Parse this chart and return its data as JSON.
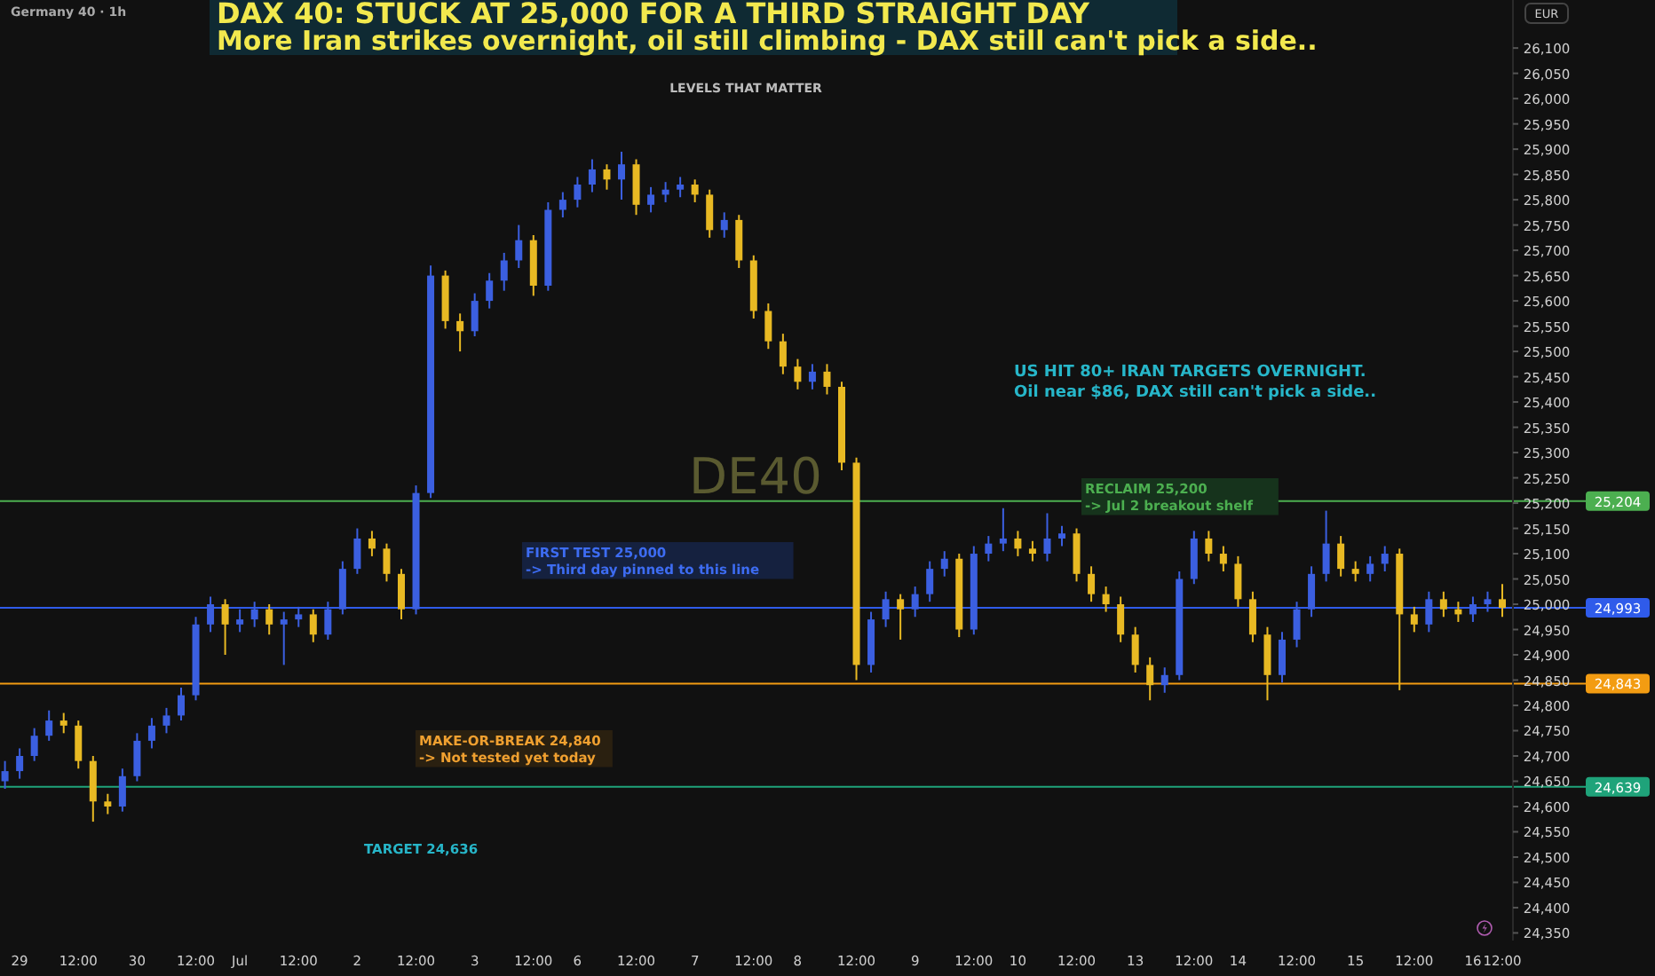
{
  "chart_data": {
    "type": "candlestick",
    "title": "DAX 40: STUCK AT 25,000 FOR A THIRD STRAIGHT DAY",
    "subtitle": "More Iran strikes overnight, oil still climbing - DAX still can't pick a side..",
    "ylabel": "EUR",
    "annotations": [
      "Germany 40 · 1h",
      "LEVELS THAT MATTER",
      "DE40",
      "US HIT 80+ IRAN TARGETS OVERNIGHT.\nOil near $86, DAX still can't pick a side..",
      "RECLAIM 25,200\n-> Jul 2 breakout shelf",
      "FIRST TEST 25,000\n-> Third day pinned to this line",
      "MAKE-OR-BREAK 24,840\n-> Not tested yet today",
      "TARGET 24,636"
    ],
    "categories": [
      null,
      "29",
      null,
      null,
      null,
      "12:00",
      null,
      null,
      null,
      "30",
      null,
      null,
      null,
      "12:00",
      null,
      null,
      "Jul",
      null,
      null,
      null,
      "12:00",
      null,
      null,
      null,
      "2",
      null,
      null,
      null,
      "12:00",
      null,
      null,
      null,
      "3",
      null,
      null,
      null,
      "12:00",
      null,
      null,
      "6",
      null,
      null,
      null,
      "12:00",
      null,
      null,
      null,
      "7",
      null,
      null,
      null,
      "12:00",
      null,
      null,
      "8",
      null,
      null,
      null,
      "12:00",
      null,
      null,
      null,
      "9",
      null,
      null,
      null,
      "12:00",
      null,
      null,
      "10",
      null,
      null,
      null,
      "12:00",
      null,
      null,
      null,
      "13",
      null,
      null,
      null,
      "12:00",
      null,
      null,
      "14",
      null,
      null,
      null,
      "12:00",
      null,
      null,
      null,
      "15",
      null,
      null,
      null,
      "12:00",
      null,
      null,
      null,
      "16",
      null,
      "12:00"
    ],
    "ohlc": [
      [
        24650,
        24690,
        24635,
        24670
      ],
      [
        24670,
        24715,
        24655,
        24700
      ],
      [
        24700,
        24755,
        24690,
        24740
      ],
      [
        24740,
        24790,
        24730,
        24770
      ],
      [
        24770,
        24785,
        24745,
        24760
      ],
      [
        24760,
        24770,
        24675,
        24690
      ],
      [
        24690,
        24700,
        24570,
        24610
      ],
      [
        24610,
        24625,
        24585,
        24600
      ],
      [
        24600,
        24675,
        24590,
        24660
      ],
      [
        24660,
        24745,
        24650,
        24730
      ],
      [
        24730,
        24775,
        24715,
        24760
      ],
      [
        24760,
        24795,
        24745,
        24780
      ],
      [
        24780,
        24835,
        24770,
        24820
      ],
      [
        24820,
        24975,
        24810,
        24960
      ],
      [
        24960,
        25015,
        24945,
        25000
      ],
      [
        25000,
        25010,
        24900,
        24960
      ],
      [
        24960,
        24990,
        24945,
        24970
      ],
      [
        24970,
        25005,
        24955,
        24990
      ],
      [
        24990,
        25000,
        24940,
        24960
      ],
      [
        24960,
        24985,
        24880,
        24970
      ],
      [
        24970,
        24995,
        24955,
        24980
      ],
      [
        24980,
        24990,
        24925,
        24940
      ],
      [
        24940,
        25005,
        24930,
        24990
      ],
      [
        24990,
        25085,
        24980,
        25070
      ],
      [
        25070,
        25150,
        25060,
        25130
      ],
      [
        25130,
        25145,
        25095,
        25110
      ],
      [
        25110,
        25120,
        25045,
        25060
      ],
      [
        25060,
        25070,
        24970,
        24990
      ],
      [
        24990,
        25235,
        24980,
        25220
      ],
      [
        25220,
        25670,
        25210,
        25650
      ],
      [
        25650,
        25660,
        25545,
        25560
      ],
      [
        25560,
        25575,
        25500,
        25540
      ],
      [
        25540,
        25615,
        25530,
        25600
      ],
      [
        25600,
        25655,
        25585,
        25640
      ],
      [
        25640,
        25695,
        25620,
        25680
      ],
      [
        25680,
        25750,
        25665,
        25720
      ],
      [
        25720,
        25730,
        25610,
        25630
      ],
      [
        25630,
        25795,
        25620,
        25780
      ],
      [
        25780,
        25815,
        25765,
        25800
      ],
      [
        25800,
        25845,
        25785,
        25830
      ],
      [
        25830,
        25880,
        25815,
        25860
      ],
      [
        25860,
        25870,
        25820,
        25840
      ],
      [
        25840,
        25895,
        25800,
        25870
      ],
      [
        25870,
        25880,
        25770,
        25790
      ],
      [
        25790,
        25825,
        25775,
        25810
      ],
      [
        25810,
        25835,
        25795,
        25820
      ],
      [
        25820,
        25845,
        25805,
        25830
      ],
      [
        25830,
        25840,
        25795,
        25810
      ],
      [
        25810,
        25820,
        25725,
        25740
      ],
      [
        25740,
        25775,
        25725,
        25760
      ],
      [
        25760,
        25770,
        25665,
        25680
      ],
      [
        25680,
        25690,
        25565,
        25580
      ],
      [
        25580,
        25595,
        25505,
        25520
      ],
      [
        25520,
        25535,
        25455,
        25470
      ],
      [
        25470,
        25485,
        25425,
        25440
      ],
      [
        25440,
        25475,
        25425,
        25460
      ],
      [
        25460,
        25475,
        25415,
        25430
      ],
      [
        25430,
        25440,
        25265,
        25280
      ],
      [
        25280,
        25290,
        24850,
        24880
      ],
      [
        24880,
        24985,
        24865,
        24970
      ],
      [
        24970,
        25025,
        24955,
        25010
      ],
      [
        25010,
        25020,
        24930,
        24990
      ],
      [
        24990,
        25035,
        24975,
        25020
      ],
      [
        25020,
        25085,
        25005,
        25070
      ],
      [
        25070,
        25105,
        25055,
        25090
      ],
      [
        25090,
        25100,
        24935,
        24950
      ],
      [
        24950,
        25115,
        24940,
        25100
      ],
      [
        25100,
        25135,
        25085,
        25120
      ],
      [
        25120,
        25190,
        25105,
        25130
      ],
      [
        25130,
        25145,
        25095,
        25110
      ],
      [
        25110,
        25125,
        25085,
        25100
      ],
      [
        25100,
        25180,
        25085,
        25130
      ],
      [
        25130,
        25155,
        25115,
        25140
      ],
      [
        25140,
        25150,
        25045,
        25060
      ],
      [
        25060,
        25075,
        25005,
        25020
      ],
      [
        25020,
        25035,
        24985,
        25000
      ],
      [
        25000,
        25015,
        24925,
        24940
      ],
      [
        24940,
        24955,
        24865,
        24880
      ],
      [
        24880,
        24895,
        24810,
        24840
      ],
      [
        24840,
        24875,
        24825,
        24860
      ],
      [
        24860,
        25065,
        24850,
        25050
      ],
      [
        25050,
        25145,
        25040,
        25130
      ],
      [
        25130,
        25145,
        25085,
        25100
      ],
      [
        25100,
        25115,
        25065,
        25080
      ],
      [
        25080,
        25095,
        24995,
        25010
      ],
      [
        25010,
        25025,
        24925,
        24940
      ],
      [
        24940,
        24955,
        24810,
        24860
      ],
      [
        24860,
        24945,
        24845,
        24930
      ],
      [
        24930,
        25005,
        24915,
        24990
      ],
      [
        24990,
        25075,
        24975,
        25060
      ],
      [
        25060,
        25185,
        25045,
        25120
      ],
      [
        25120,
        25135,
        25055,
        25070
      ],
      [
        25070,
        25085,
        25045,
        25060
      ],
      [
        25060,
        25095,
        25045,
        25080
      ],
      [
        25080,
        25115,
        25065,
        25100
      ],
      [
        25100,
        25110,
        24830,
        24980
      ],
      [
        24980,
        24995,
        24945,
        24960
      ],
      [
        24960,
        25025,
        24945,
        25010
      ],
      [
        25010,
        25025,
        24975,
        24990
      ],
      [
        24990,
        25005,
        24965,
        24980
      ],
      [
        24980,
        25015,
        24965,
        25000
      ],
      [
        25000,
        25025,
        24985,
        25010
      ],
      [
        25010,
        25040,
        24975,
        24993
      ]
    ],
    "ylim": [
      24335,
      26195
    ],
    "yticks": [
      {
        "value": 24350,
        "label": "24,350"
      },
      {
        "value": 24400,
        "label": "24,400"
      },
      {
        "value": 24450,
        "label": "24,450"
      },
      {
        "value": 24500,
        "label": "24,500"
      },
      {
        "value": 24550,
        "label": "24,550"
      },
      {
        "value": 24600,
        "label": "24,600"
      },
      {
        "value": 24650,
        "label": "24,650"
      },
      {
        "value": 24700,
        "label": "24,700"
      },
      {
        "value": 24750,
        "label": "24,750"
      },
      {
        "value": 24800,
        "label": "24,800"
      },
      {
        "value": 24850,
        "label": "24,850"
      },
      {
        "value": 24900,
        "label": "24,900"
      },
      {
        "value": 24950,
        "label": "24,950"
      },
      {
        "value": 25000,
        "label": "25,000"
      },
      {
        "value": 25050,
        "label": "25,050"
      },
      {
        "value": 25100,
        "label": "25,100"
      },
      {
        "value": 25150,
        "label": "25,150"
      },
      {
        "value": 25200,
        "label": "25,200"
      },
      {
        "value": 25250,
        "label": "25,250"
      },
      {
        "value": 25300,
        "label": "25,300"
      },
      {
        "value": 25350,
        "label": "25,350"
      },
      {
        "value": 25400,
        "label": "25,400"
      },
      {
        "value": 25450,
        "label": "25,450"
      },
      {
        "value": 25500,
        "label": "25,500"
      },
      {
        "value": 25550,
        "label": "25,550"
      },
      {
        "value": 25600,
        "label": "25,600"
      },
      {
        "value": 25650,
        "label": "25,650"
      },
      {
        "value": 25700,
        "label": "25,700"
      },
      {
        "value": 25750,
        "label": "25,750"
      },
      {
        "value": 25800,
        "label": "25,800"
      },
      {
        "value": 25850,
        "label": "25,850"
      },
      {
        "value": 25900,
        "label": "25,900"
      },
      {
        "value": 25950,
        "label": "25,950"
      },
      {
        "value": 26000,
        "label": "26,000"
      },
      {
        "value": 26050,
        "label": "26,050"
      },
      {
        "value": 26100,
        "label": "26,100"
      }
    ],
    "ref_lines": [
      {
        "axis": "y",
        "value": 25204,
        "label": "25,204",
        "color": "#4caf50"
      },
      {
        "axis": "y",
        "value": 24993,
        "label": "24,993",
        "color": "#2f5bea"
      },
      {
        "axis": "y",
        "value": 24843,
        "label": "24,843",
        "color": "#f39c12"
      },
      {
        "axis": "y",
        "value": 24639,
        "label": "24,639",
        "color": "#1fa37a"
      }
    ],
    "grid": false
  }
}
